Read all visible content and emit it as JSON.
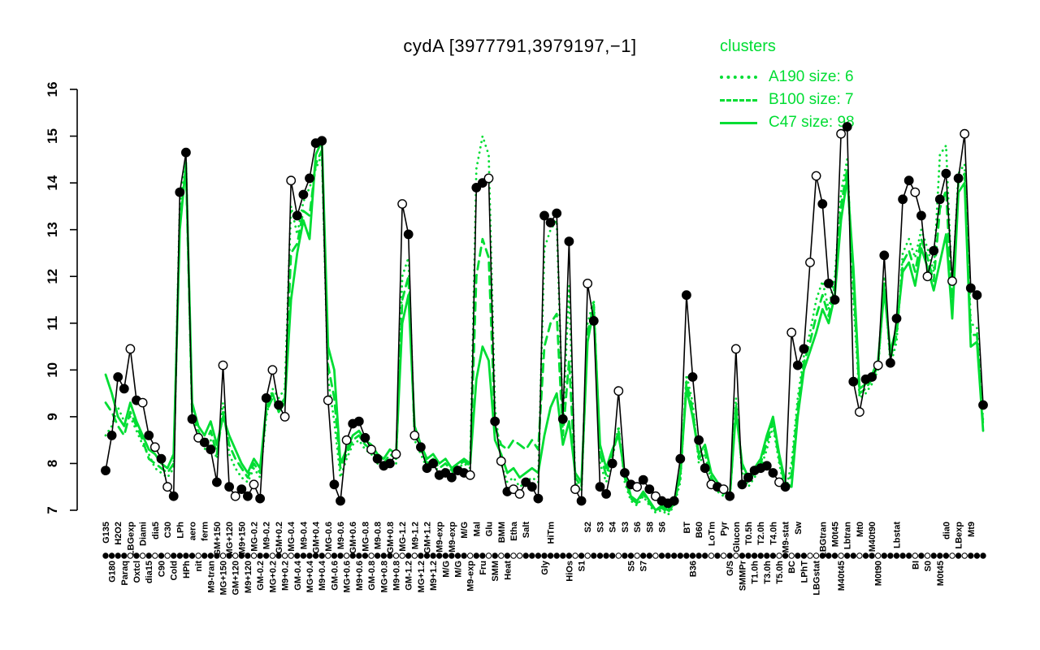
{
  "title": "cydA [3977791,3979197,−1]",
  "legend": {
    "heading": "clusters",
    "items": [
      {
        "label": "A190 size: 6",
        "style": "dotted"
      },
      {
        "label": "B100 size: 7",
        "style": "dashed"
      },
      {
        "label": "C47 size: 98",
        "style": "solid"
      }
    ]
  },
  "colors": {
    "cluster": "#00dd33",
    "profile": "#000000",
    "background": "#ffffff"
  },
  "chart_data": {
    "type": "line",
    "title": "cydA [3977791,3979197,−1]",
    "xlabel": "",
    "ylabel": "",
    "ylim": [
      7,
      16
    ],
    "yticks": [
      7,
      8,
      9,
      10,
      11,
      12,
      13,
      14,
      15,
      16
    ],
    "grid": false,
    "legend_position": "top-right",
    "categories": [
      "G135",
      "G180",
      "H2O2",
      "Paraq",
      "LBGexp",
      "Oxtcl",
      "Diami",
      "dia15",
      "dia5",
      "C90",
      "C30",
      "Cold",
      "LPh",
      "HPh",
      "aero",
      "nit",
      "ferm",
      "M9-tran",
      "GM+150",
      "MG+150",
      "MG+120",
      "GM+120",
      "M9+150",
      "M9+120",
      "MG-0.2",
      "GM-0.2",
      "M9-0.2",
      "MG+0.2",
      "GM+0.2",
      "M9+0.2",
      "MG-0.4",
      "GM-0.4",
      "M9-0.4",
      "MG+0.4",
      "GM+0.4",
      "M9+0.4",
      "MG-0.6",
      "GM-0.6",
      "M9-0.6",
      "MG+0.6",
      "GM+0.6",
      "M9+0.6",
      "MG-0.8",
      "GM-0.8",
      "M9-0.8",
      "MG+0.8",
      "GM+0.8",
      "M9+0.8",
      "MG-1.2",
      "GM-1.2",
      "M9-1.2",
      "MG+1.2",
      "GM+1.2",
      "M9+1.2",
      "M9-exp",
      "M/G",
      "M9-exp",
      "M/G",
      "M/G",
      "M9-exp",
      "Mal",
      "Fru",
      "Glu",
      "SMM",
      "BMM",
      "Heat",
      "Etha",
      "",
      "Salt",
      "",
      "",
      "Gly",
      "HiTm",
      "",
      "",
      "HiOs",
      "",
      "S1",
      "S2",
      "",
      "S3",
      "",
      "S4",
      "",
      "S3",
      "S5",
      "S6",
      "S7",
      "S8",
      "",
      "S6",
      "",
      "",
      "",
      "BT",
      "B36",
      "B60",
      "",
      "LoTm",
      "",
      "Pyr",
      "G/S",
      "Glucon",
      "SMMPr",
      "T0.5h",
      "T1.0h",
      "T2.0h",
      "T3.0h",
      "T4.0h",
      "T5.0h",
      "M9-stat",
      "BC",
      "Sw",
      "LPhT",
      "",
      "LBGstat",
      "LBGtran",
      "",
      "M0t45",
      "M40t45",
      "Lbtran",
      "",
      "Mt0",
      "",
      "M40t90",
      "M0t90",
      "",
      "",
      "Lbstat",
      "",
      "",
      "BI",
      "",
      "S0",
      "",
      "M0t45",
      "dia0",
      "",
      "LBexp",
      "",
      "Mt9",
      "",
      ""
    ],
    "series": [
      {
        "name": "cydA profile",
        "role": "gene-profile",
        "style": "solid-with-points",
        "color": "#000000",
        "values": [
          7.85,
          8.6,
          9.85,
          9.6,
          10.45,
          9.35,
          9.3,
          8.6,
          8.35,
          8.1,
          7.5,
          7.3,
          13.8,
          14.65,
          8.95,
          8.55,
          8.45,
          8.3,
          7.6,
          10.1,
          7.5,
          7.3,
          7.45,
          7.3,
          7.55,
          7.25,
          9.4,
          10.0,
          9.25,
          9.0,
          14.05,
          13.3,
          13.75,
          14.1,
          14.85,
          14.9,
          9.35,
          7.55,
          7.2,
          8.5,
          8.85,
          8.9,
          8.55,
          8.3,
          8.1,
          7.95,
          8.0,
          8.2,
          13.55,
          12.9,
          8.6,
          8.35,
          7.9,
          8.0,
          7.75,
          7.8,
          7.7,
          7.85,
          7.8,
          7.75,
          13.9,
          14.0,
          14.1,
          8.9,
          8.05,
          7.4,
          7.45,
          7.35,
          7.6,
          7.5,
          7.25,
          13.3,
          13.15,
          13.35,
          8.95,
          12.75,
          7.45,
          7.2,
          11.85,
          11.05,
          7.5,
          7.35,
          8.0,
          9.55,
          7.8,
          7.55,
          7.5,
          7.65,
          7.45,
          7.3,
          7.2,
          7.15,
          7.2,
          8.1,
          11.6,
          9.85,
          8.5,
          7.9,
          7.55,
          7.5,
          7.45,
          7.3,
          10.45,
          7.55,
          7.7,
          7.85,
          7.9,
          7.95,
          7.8,
          7.6,
          7.5,
          10.8,
          10.1,
          10.45,
          12.3,
          14.15,
          13.55,
          11.85,
          11.5,
          15.05,
          15.2,
          9.75,
          9.1,
          9.8,
          9.85,
          10.1,
          12.45,
          10.15,
          11.1,
          13.65,
          14.05,
          13.8,
          13.3,
          12.0,
          12.55,
          13.65,
          14.2,
          11.9,
          14.1,
          15.05,
          11.75,
          11.6,
          9.25
        ],
        "point_filled": [
          1,
          1,
          1,
          1,
          0,
          1,
          0,
          1,
          0,
          1,
          0,
          1,
          1,
          1,
          1,
          0,
          1,
          1,
          1,
          0,
          1,
          0,
          1,
          1,
          0,
          1,
          1,
          0,
          1,
          0,
          0,
          1,
          1,
          1,
          1,
          1,
          0,
          1,
          1,
          0,
          1,
          1,
          1,
          0,
          1,
          1,
          1,
          0,
          0,
          1,
          0,
          1,
          1,
          1,
          1,
          1,
          1,
          1,
          1,
          0,
          1,
          1,
          0,
          1,
          0,
          1,
          0,
          0,
          1,
          1,
          1,
          1,
          1,
          1,
          1,
          1,
          0,
          1,
          0,
          1,
          1,
          1,
          1,
          0,
          1,
          1,
          0,
          1,
          1,
          0,
          1,
          1,
          1,
          1,
          1,
          1,
          1,
          1,
          0,
          1,
          0,
          1,
          0,
          1,
          1,
          1,
          1,
          1,
          1,
          0,
          1,
          0,
          1,
          1,
          0,
          0,
          1,
          1,
          1,
          0,
          1,
          1,
          0,
          1,
          1,
          0,
          1,
          1,
          1,
          1,
          1,
          0,
          1,
          0,
          1,
          1,
          1,
          0,
          1,
          0,
          1,
          1,
          1
        ]
      },
      {
        "name": "A190 size: 6",
        "role": "cluster-mean",
        "style": "dotted",
        "color": "#00dd33",
        "values": [
          8.6,
          8.8,
          9.2,
          8.9,
          9.0,
          8.7,
          8.4,
          8.2,
          7.9,
          7.8,
          7.7,
          7.9,
          13.5,
          14.5,
          9.0,
          8.6,
          8.3,
          8.5,
          8.1,
          9.3,
          8.2,
          7.9,
          7.7,
          7.6,
          7.9,
          7.7,
          9.0,
          9.6,
          9.4,
          9.6,
          13.5,
          12.9,
          13.6,
          13.9,
          14.3,
          14.6,
          9.8,
          8.9,
          7.7,
          8.1,
          8.4,
          8.5,
          8.3,
          8.2,
          8.0,
          7.9,
          8.1,
          8.0,
          12.0,
          12.4,
          8.5,
          8.2,
          7.9,
          8.0,
          7.8,
          7.9,
          7.8,
          7.9,
          8.0,
          7.9,
          14.3,
          15.0,
          14.6,
          9.2,
          8.0,
          7.6,
          7.7,
          7.5,
          7.6,
          7.7,
          7.6,
          12.6,
          13.0,
          13.2,
          8.8,
          11.8,
          7.6,
          7.4,
          11.0,
          11.5,
          8.0,
          7.6,
          8.1,
          8.8,
          7.6,
          7.2,
          7.1,
          7.3,
          7.1,
          6.95,
          7.0,
          6.9,
          7.1,
          7.6,
          9.9,
          9.3,
          8.0,
          8.2,
          7.6,
          7.4,
          7.3,
          7.2,
          9.4,
          7.8,
          7.5,
          7.7,
          7.9,
          8.3,
          8.8,
          8.0,
          7.4,
          8.0,
          9.4,
          10.3,
          10.8,
          11.5,
          11.9,
          11.3,
          12.0,
          13.8,
          14.5,
          11.5,
          9.4,
          9.5,
          9.7,
          10.0,
          12.0,
          10.1,
          10.6,
          12.5,
          12.8,
          12.4,
          13.0,
          12.6,
          12.1,
          14.6,
          14.8,
          11.6,
          14.2,
          14.4,
          11.0,
          10.9,
          8.9
        ]
      },
      {
        "name": "B100 size: 7",
        "role": "cluster-mean",
        "style": "dashed",
        "color": "#00dd33",
        "values": [
          9.3,
          9.1,
          8.8,
          8.6,
          9.1,
          8.8,
          8.5,
          8.1,
          8.0,
          7.9,
          7.8,
          8.0,
          13.2,
          14.3,
          9.1,
          8.7,
          8.4,
          8.7,
          8.2,
          9.1,
          8.4,
          8.1,
          7.9,
          7.7,
          8.0,
          7.8,
          9.1,
          9.4,
          9.2,
          9.4,
          12.5,
          12.7,
          13.4,
          13.3,
          14.4,
          14.7,
          10.1,
          9.4,
          7.9,
          8.2,
          8.5,
          8.6,
          8.4,
          8.3,
          8.1,
          8.0,
          8.2,
          8.1,
          11.5,
          12.0,
          8.6,
          8.3,
          8.0,
          8.1,
          7.9,
          8.0,
          7.85,
          7.95,
          8.05,
          7.95,
          12.0,
          12.8,
          12.4,
          8.8,
          8.4,
          8.3,
          8.5,
          8.4,
          8.3,
          8.5,
          8.3,
          10.5,
          11.0,
          11.2,
          8.6,
          10.2,
          7.7,
          7.5,
          10.8,
          11.4,
          8.2,
          7.75,
          8.2,
          8.7,
          7.7,
          7.25,
          7.15,
          7.35,
          7.15,
          7.0,
          7.05,
          6.95,
          7.15,
          7.7,
          9.75,
          9.15,
          8.1,
          8.3,
          7.7,
          7.5,
          7.35,
          7.25,
          9.25,
          7.9,
          7.6,
          7.8,
          8.0,
          8.45,
          8.9,
          8.1,
          7.5,
          7.75,
          9.2,
          10.15,
          10.6,
          11.15,
          11.6,
          11.15,
          11.8,
          13.5,
          14.3,
          11.85,
          9.5,
          9.6,
          9.8,
          10.1,
          11.85,
          10.25,
          10.75,
          12.3,
          12.55,
          12.1,
          12.8,
          12.4,
          11.9,
          13.45,
          13.85,
          11.35,
          14.0,
          14.2,
          10.75,
          10.75,
          8.8
        ]
      },
      {
        "name": "C47 size: 98",
        "role": "cluster-mean",
        "style": "solid",
        "color": "#00dd33",
        "values": [
          9.9,
          9.5,
          9.0,
          8.8,
          9.3,
          8.9,
          8.6,
          8.3,
          8.2,
          8.0,
          7.9,
          8.2,
          13.0,
          14.4,
          9.3,
          8.8,
          8.6,
          8.9,
          8.4,
          9.0,
          8.6,
          8.3,
          8.0,
          7.8,
          8.1,
          7.9,
          9.2,
          9.5,
          9.1,
          9.3,
          11.5,
          12.5,
          13.2,
          12.8,
          14.6,
          14.9,
          10.5,
          10.0,
          8.0,
          8.3,
          8.6,
          8.7,
          8.5,
          8.4,
          8.2,
          8.1,
          8.3,
          8.2,
          11.0,
          11.6,
          8.8,
          8.4,
          8.1,
          8.2,
          8.0,
          8.1,
          7.9,
          8.0,
          8.1,
          8.0,
          9.8,
          10.5,
          10.2,
          8.5,
          8.2,
          7.8,
          7.9,
          7.7,
          7.8,
          7.9,
          7.8,
          8.6,
          9.2,
          9.5,
          8.4,
          8.9,
          7.8,
          7.6,
          10.6,
          11.3,
          8.4,
          7.9,
          8.3,
          8.6,
          7.8,
          7.3,
          7.2,
          7.4,
          7.2,
          7.0,
          7.1,
          7.0,
          7.2,
          7.8,
          9.6,
          9.0,
          8.2,
          8.4,
          7.8,
          7.6,
          7.4,
          7.3,
          9.1,
          8.0,
          7.7,
          7.9,
          8.1,
          8.6,
          9.0,
          8.2,
          7.6,
          7.5,
          9.0,
          10.0,
          10.4,
          10.8,
          11.3,
          11.0,
          11.6,
          13.2,
          14.1,
          12.2,
          9.6,
          9.7,
          9.9,
          10.2,
          11.7,
          10.4,
          10.9,
          12.1,
          12.3,
          11.8,
          12.6,
          12.2,
          11.7,
          12.3,
          12.9,
          11.1,
          13.8,
          14.0,
          10.5,
          10.6,
          8.7
        ]
      }
    ]
  }
}
